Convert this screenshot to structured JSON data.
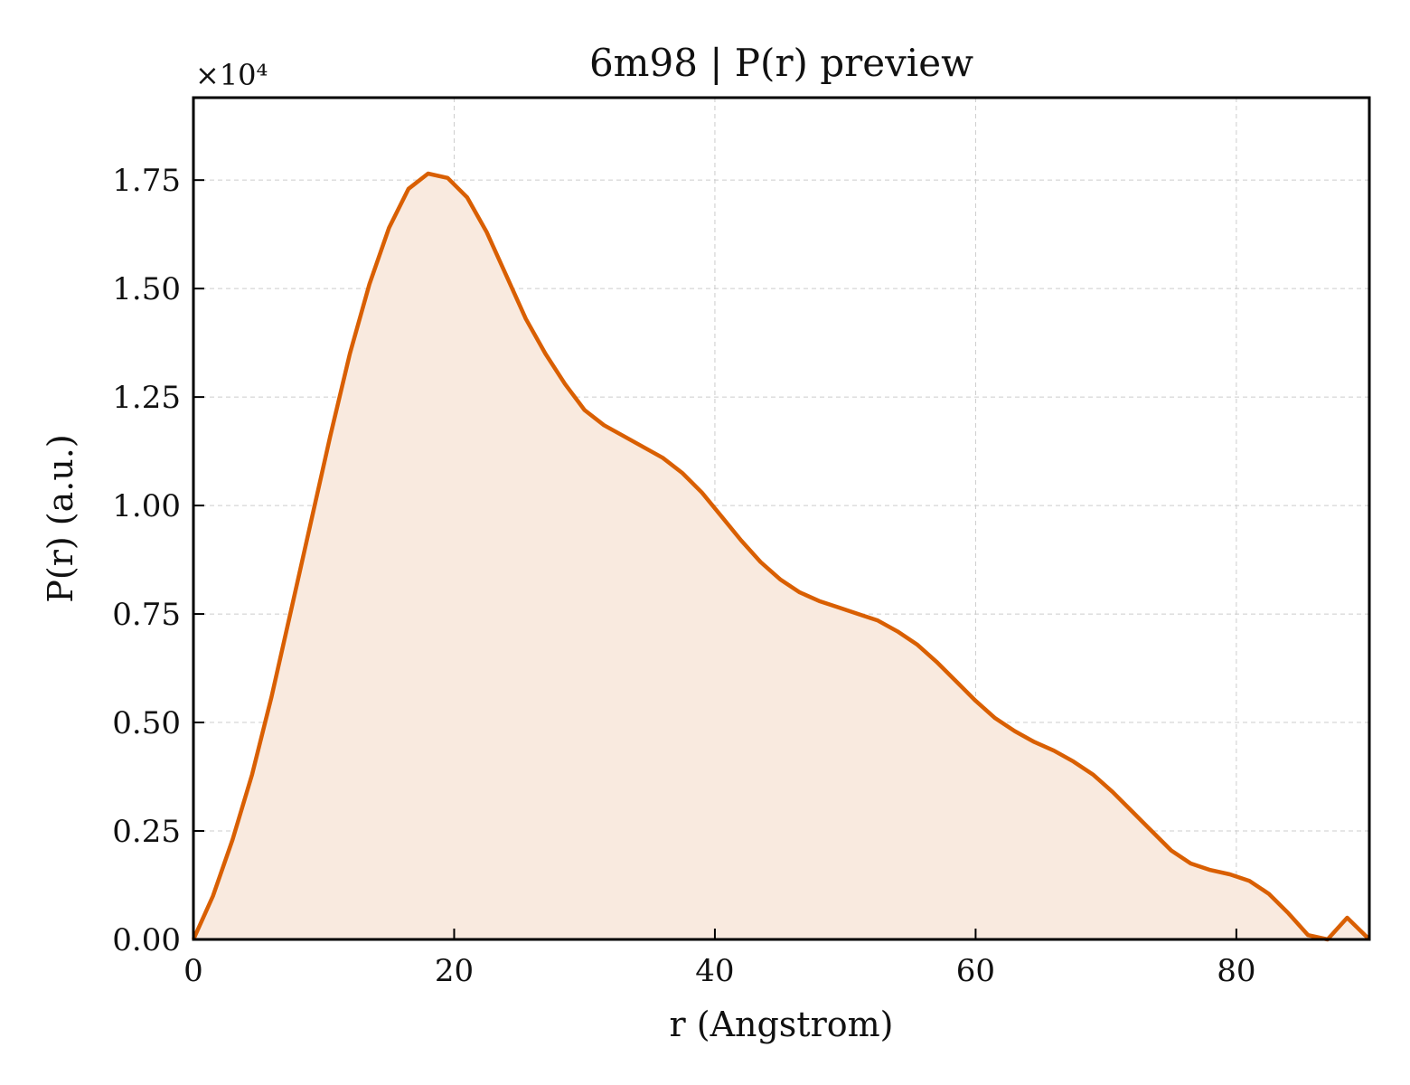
{
  "chart_data": {
    "type": "area",
    "title": "6m98 | P(r) preview",
    "xlabel": "r (Angstrom)",
    "ylabel": "P(r) (a.u.)",
    "y_offset_label": "×10⁴",
    "xlim": [
      0,
      90.2
    ],
    "ylim": [
      0,
      1.94
    ],
    "xticks": [
      0,
      20,
      40,
      60,
      80
    ],
    "xtick_labels": [
      "0",
      "20",
      "40",
      "60",
      "80"
    ],
    "yticks": [
      0,
      0.25,
      0.5,
      0.75,
      1.0,
      1.25,
      1.5,
      1.75
    ],
    "ytick_labels": [
      "0.00",
      "0.25",
      "0.50",
      "0.75",
      "1.00",
      "1.25",
      "1.50",
      "1.75"
    ],
    "grid": true,
    "line_color": "#d95f02",
    "fill_color": "#f9eadf",
    "series": [
      {
        "x": [
          0,
          1.5,
          3,
          4.5,
          6,
          7.5,
          9,
          10.5,
          12,
          13.5,
          15,
          16.5,
          18,
          19.5,
          21,
          22.5,
          24,
          25.5,
          27,
          28.5,
          30,
          31.5,
          33,
          34.5,
          36,
          37.5,
          39,
          40.5,
          42,
          43.5,
          45,
          46.5,
          48,
          49.5,
          51,
          52.5,
          54,
          55.5,
          57,
          58.5,
          60,
          61.5,
          63,
          64.5,
          66,
          67.5,
          69,
          70.5,
          72,
          73.5,
          75,
          76.5,
          78,
          79.5,
          81,
          82.5,
          84,
          85.5,
          87,
          88.5,
          90.2
        ],
        "y": [
          0.0,
          0.1,
          0.23,
          0.38,
          0.56,
          0.76,
          0.96,
          1.16,
          1.35,
          1.51,
          1.64,
          1.73,
          1.765,
          1.755,
          1.71,
          1.63,
          1.53,
          1.43,
          1.35,
          1.28,
          1.22,
          1.185,
          1.16,
          1.135,
          1.11,
          1.075,
          1.03,
          0.975,
          0.92,
          0.87,
          0.83,
          0.8,
          0.78,
          0.765,
          0.75,
          0.735,
          0.71,
          0.68,
          0.64,
          0.595,
          0.55,
          0.51,
          0.48,
          0.455,
          0.435,
          0.41,
          0.38,
          0.34,
          0.295,
          0.25,
          0.205,
          0.175,
          0.16,
          0.15,
          0.135,
          0.105,
          0.06,
          0.01,
          0.0,
          0.05,
          0.0
        ]
      }
    ]
  }
}
